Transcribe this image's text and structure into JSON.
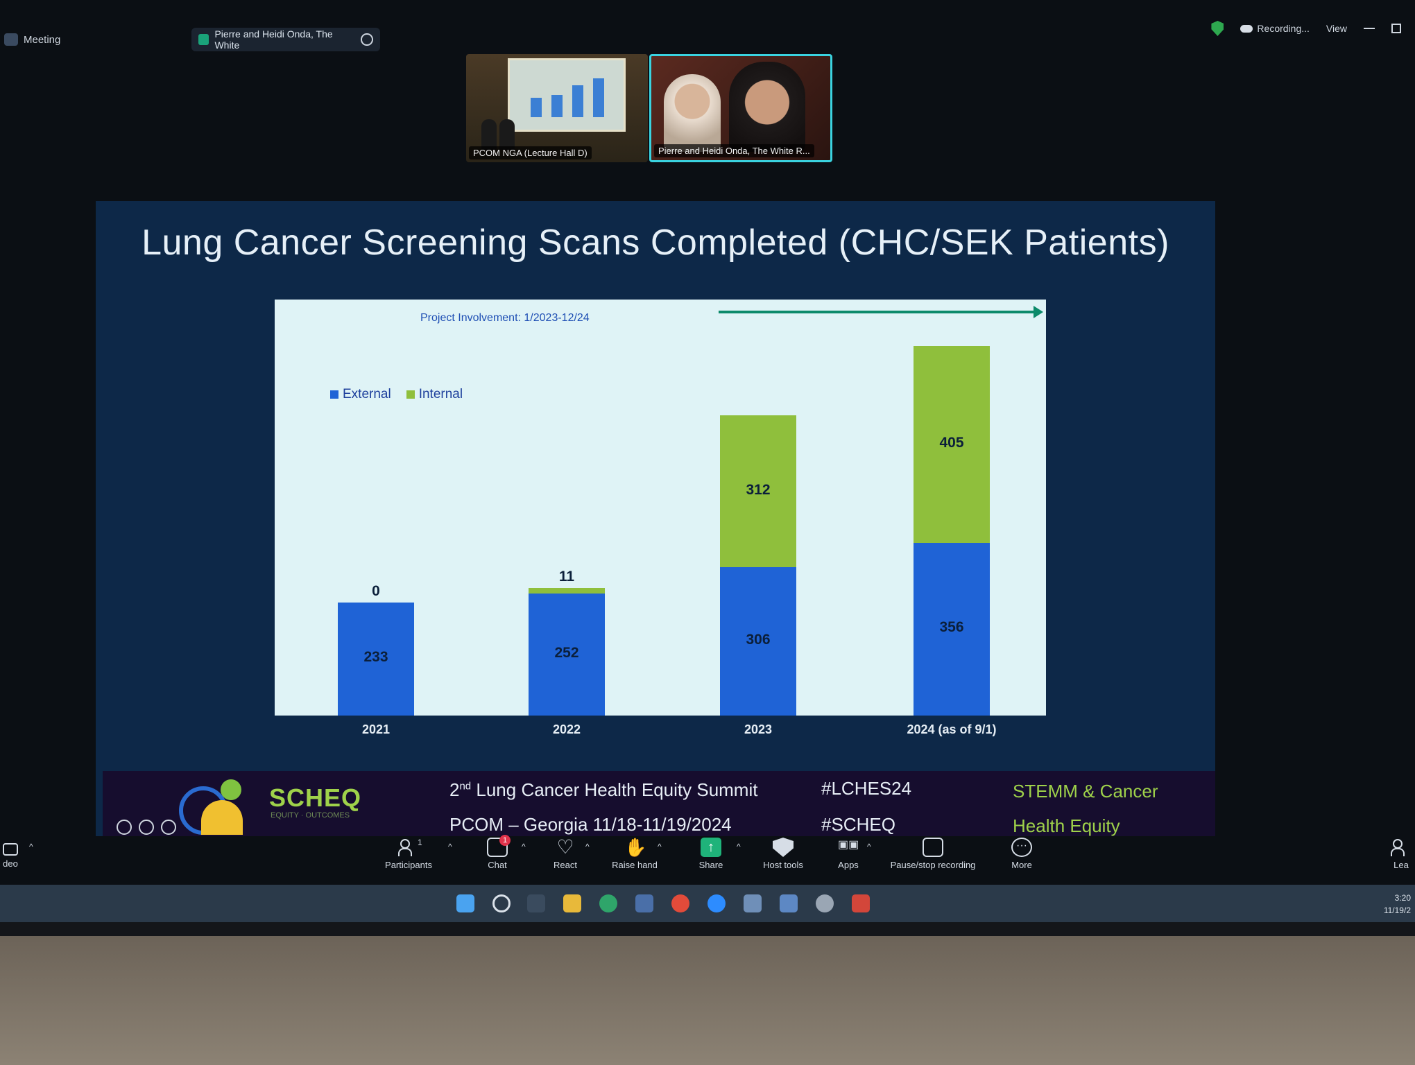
{
  "zoom": {
    "meeting_label": "Meeting",
    "speaker_chip": "Pierre and Heidi Onda, The White",
    "recording_label": "Recording...",
    "view_label": "View",
    "thumbnails": [
      {
        "caption": "PCOM NGA (Lecture Hall D)"
      },
      {
        "caption": "Pierre and Heidi Onda, The White R..."
      }
    ],
    "toolbar": [
      {
        "label": "Participants",
        "count": "1",
        "icon": "participants-icon"
      },
      {
        "label": "Chat",
        "badge": "1",
        "icon": "chat-icon"
      },
      {
        "label": "React",
        "icon": "heart-icon"
      },
      {
        "label": "Raise hand",
        "icon": "hand-icon"
      },
      {
        "label": "Share",
        "icon": "share-icon"
      },
      {
        "label": "Host tools",
        "icon": "shield-icon"
      },
      {
        "label": "Apps",
        "icon": "apps-icon"
      },
      {
        "label": "Pause/stop recording",
        "icon": "pause-stop-icon"
      },
      {
        "label": "More",
        "icon": "more-icon"
      }
    ],
    "left_partial_label": "deo",
    "right_partial_label": "Lea"
  },
  "slide": {
    "title": "Lung Cancer Screening Scans Completed (CHC/SEK Patients)",
    "project_involvement": "Project Involvement: 1/2023-12/24",
    "footer": {
      "brand": "SCHEQ",
      "brand_sub": "EQUITY · OUTCOMES",
      "summit_ordinal": "nd",
      "summit_num": "2",
      "summit_rest": " Lung Cancer Health Equity Summit",
      "location": "PCOM – Georgia 11/18-11/19/2024",
      "tag1": "#LCHES24",
      "tag2": "#SCHEQ",
      "right1": "STEMM & Cancer",
      "right2": "Health Equity"
    }
  },
  "chart_data": {
    "type": "bar",
    "stacked": true,
    "categories": [
      "2021",
      "2022",
      "2023",
      "2024 (as of 9/1)"
    ],
    "series": [
      {
        "name": "External",
        "values": [
          233,
          252,
          306,
          356
        ],
        "color": "#1f63d6"
      },
      {
        "name": "Internal",
        "values": [
          0,
          11,
          312,
          405
        ],
        "color": "#8fbf3c"
      }
    ],
    "ylim": [
      0,
      800
    ],
    "title": "",
    "xlabel": "",
    "ylabel": "",
    "legend_position": "top-left",
    "grid": false
  },
  "taskbar": {
    "time": "3:20",
    "date": "11/19/2"
  }
}
